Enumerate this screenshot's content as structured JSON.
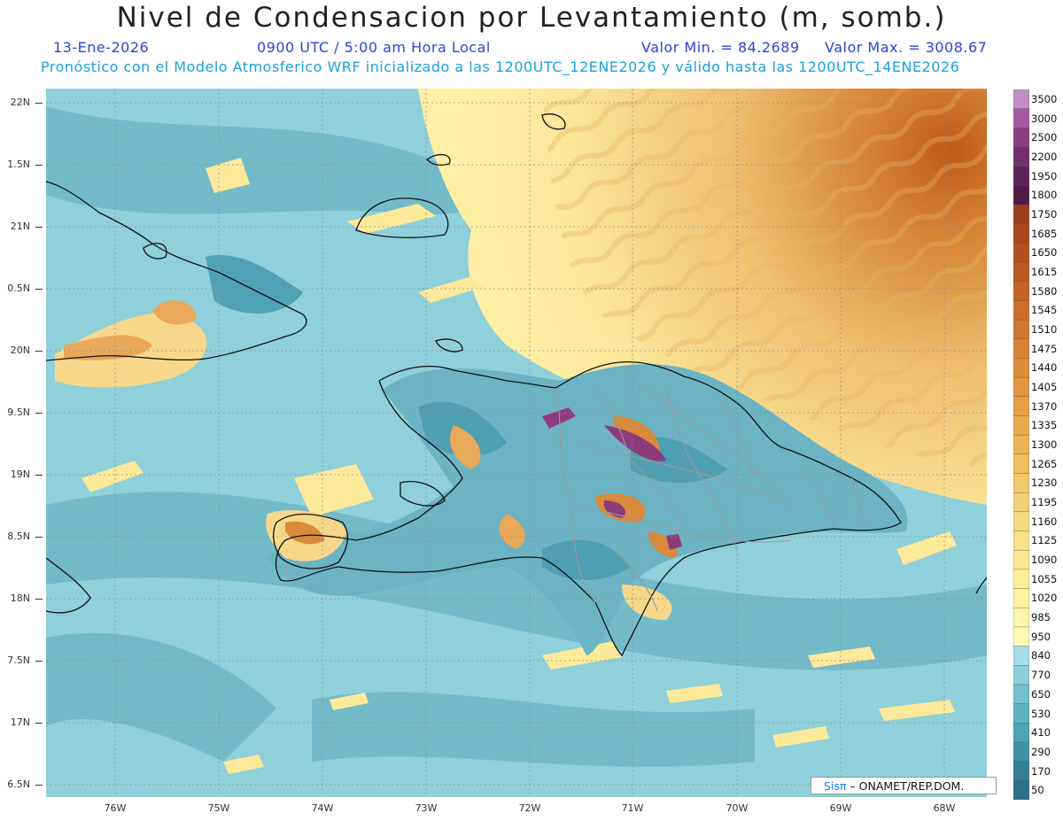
{
  "header": {
    "title": "Nivel de Condensacion por Levantamiento (m, somb.)",
    "date": "13-Ene-2026",
    "time": "0900 UTC / 5:00 am Hora Local",
    "vmin": "Valor Min. = 84.2689",
    "vmax": "Valor Max. = 3008.67",
    "model_line": "Pronóstico con el Modelo Atmosferico WRF inicializado a las 1200UTC_12ENE2026 y válido hasta las  1200UTC_14ENE2026"
  },
  "axes": {
    "lat_labels": [
      "22N",
      "1.5N",
      "21N",
      "0.5N",
      "20N",
      "9.5N",
      "19N",
      "8.5N",
      "18N",
      "7.5N",
      "17N",
      "6.5N"
    ],
    "lon_labels": [
      "76W",
      "75W",
      "74W",
      "73W",
      "72W",
      "71W",
      "70W",
      "69W",
      "68W"
    ]
  },
  "colorbar": {
    "labels": [
      "3500",
      "3000",
      "2500",
      "2200",
      "1950",
      "1800",
      "1750",
      "1685",
      "1650",
      "1615",
      "1580",
      "1545",
      "1510",
      "1475",
      "1440",
      "1405",
      "1370",
      "1335",
      "1300",
      "1265",
      "1230",
      "1195",
      "1160",
      "1125",
      "1090",
      "1055",
      "1020",
      "985",
      "950",
      "840",
      "770",
      "650",
      "530",
      "410",
      "290",
      "170",
      "50"
    ]
  },
  "credit": {
    "brand": "Sisπ",
    "text": "– ONAMET/REP.DOM."
  },
  "colors": {
    "ocean": "#8fd0da",
    "dry_high": "#c8681c",
    "moist_low": "#3e94aa",
    "brand_blue": "#1e78ff"
  }
}
